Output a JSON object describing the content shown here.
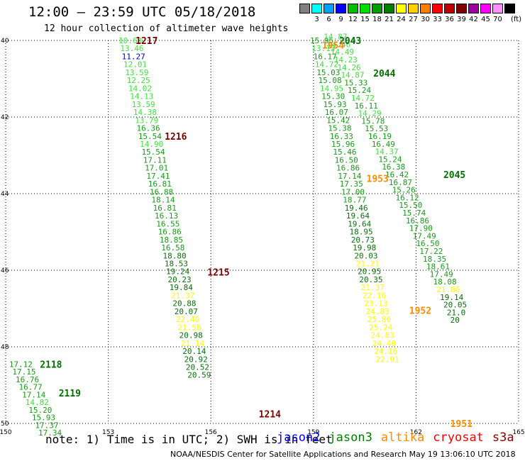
{
  "header": {
    "title": "12:00 – 23:59 UTC 05/18/2018",
    "subtitle": "12 hour collection of altimeter wave heights"
  },
  "scale": {
    "unit": "(ft)",
    "bins": [
      {
        "label": "",
        "color": "#808080"
      },
      {
        "label": "3",
        "color": "#00ffff"
      },
      {
        "label": "6",
        "color": "#00a0ff"
      },
      {
        "label": "9",
        "color": "#0000ff"
      },
      {
        "label": "12",
        "color": "#00c000"
      },
      {
        "label": "15",
        "color": "#00e000"
      },
      {
        "label": "18",
        "color": "#00a000"
      },
      {
        "label": "21",
        "color": "#008000"
      },
      {
        "label": "24",
        "color": "#ffff00"
      },
      {
        "label": "27",
        "color": "#ffd000"
      },
      {
        "label": "30",
        "color": "#ff8000"
      },
      {
        "label": "33",
        "color": "#ff0000"
      },
      {
        "label": "36",
        "color": "#c00000"
      },
      {
        "label": "39",
        "color": "#800000"
      },
      {
        "label": "42",
        "color": "#a000a0"
      },
      {
        "label": "45",
        "color": "#ff00ff"
      },
      {
        "label": "70",
        "color": "#ff90ff"
      },
      {
        "label": "",
        "color": "#000000"
      }
    ]
  },
  "map": {
    "lon_ticks": [
      "150",
      "153",
      "156",
      "159",
      "162",
      "165"
    ],
    "lat_ticks": [
      "40",
      "42",
      "44",
      "46",
      "48",
      "50"
    ],
    "colors": {
      "c3": "#40e040",
      "c4": "#1a9a1a",
      "c5": "#0c6e0c",
      "c6": "#00a0ff",
      "c7": "#ffff00",
      "c8": "#0000cc",
      "label_dark": "#7a0000",
      "label_green": "#007000",
      "label_orange": "#ff8c00"
    },
    "tracks": [
      {
        "lon0": 153.3,
        "lat0": 40.0,
        "dlon": 0.048,
        "dlat": 0.208,
        "values": [
          {
            "v": "10.63",
            "c": "c3"
          },
          {
            "v": "13.46",
            "c": "c3"
          },
          {
            "v": "11.27",
            "c": "c8"
          },
          {
            "v": "12.01",
            "c": "c3"
          },
          {
            "v": "13.59",
            "c": "c3"
          },
          {
            "v": "12.25",
            "c": "c3"
          },
          {
            "v": "14.02",
            "c": "c3"
          },
          {
            "v": "14.13",
            "c": "c3"
          },
          {
            "v": "13.59",
            "c": "c3"
          },
          {
            "v": "14.38",
            "c": "c3"
          },
          {
            "v": "13.79",
            "c": "c3"
          },
          {
            "v": "16.36",
            "c": "c4"
          },
          {
            "v": "15.54",
            "c": "c4"
          },
          {
            "v": "14.90",
            "c": "c3"
          },
          {
            "v": "15.54",
            "c": "c4"
          },
          {
            "v": "17.11",
            "c": "c4"
          },
          {
            "v": "17.01",
            "c": "c4"
          },
          {
            "v": "17.41",
            "c": "c4"
          },
          {
            "v": "16.81",
            "c": "c4"
          },
          {
            "v": "16.88",
            "c": "c4"
          },
          {
            "v": "18.14",
            "c": "c4"
          },
          {
            "v": "16.81",
            "c": "c4"
          },
          {
            "v": "16.13",
            "c": "c4"
          },
          {
            "v": "16.55",
            "c": "c4"
          },
          {
            "v": "16.86",
            "c": "c4"
          },
          {
            "v": "18.85",
            "c": "c4"
          },
          {
            "v": "16.58",
            "c": "c4"
          },
          {
            "v": "18.80",
            "c": "c5"
          },
          {
            "v": "18.53",
            "c": "c5"
          },
          {
            "v": "19.24",
            "c": "c5"
          },
          {
            "v": "20.23",
            "c": "c5"
          },
          {
            "v": "19.84",
            "c": "c5"
          },
          {
            "v": "21.37",
            "c": "c7"
          },
          {
            "v": "20.88",
            "c": "c5"
          },
          {
            "v": "20.07",
            "c": "c5"
          },
          {
            "v": "22.40",
            "c": "c7"
          },
          {
            "v": "21.58",
            "c": "c7"
          },
          {
            "v": "20.98",
            "c": "c5"
          },
          {
            "v": "21.14",
            "c": "c7"
          },
          {
            "v": "20.14",
            "c": "c5"
          },
          {
            "v": "20.92",
            "c": "c5"
          },
          {
            "v": "20.52",
            "c": "c5"
          },
          {
            "v": "20.59",
            "c": "c5"
          }
        ]
      },
      {
        "lon0": 158.9,
        "lat0": 40.0,
        "dlon": 0.048,
        "dlat": 0.208,
        "values": [
          {
            "v": "15.95",
            "c": "c4"
          },
          {
            "v": "13.13",
            "c": "c3"
          },
          {
            "v": "16.17",
            "c": "c4"
          },
          {
            "v": "14.72",
            "c": "c3"
          },
          {
            "v": "15.03",
            "c": "c4"
          },
          {
            "v": "15.08",
            "c": "c4"
          },
          {
            "v": "14.95",
            "c": "c3"
          },
          {
            "v": "15.30",
            "c": "c4"
          },
          {
            "v": "15.93",
            "c": "c4"
          },
          {
            "v": "16.07",
            "c": "c4"
          },
          {
            "v": "15.42",
            "c": "c4"
          },
          {
            "v": "15.38",
            "c": "c4"
          },
          {
            "v": "16.33",
            "c": "c4"
          },
          {
            "v": "15.96",
            "c": "c4"
          },
          {
            "v": "15.46",
            "c": "c4"
          },
          {
            "v": "16.50",
            "c": "c4"
          },
          {
            "v": "16.86",
            "c": "c4"
          },
          {
            "v": "17.14",
            "c": "c4"
          },
          {
            "v": "17.35",
            "c": "c4"
          },
          {
            "v": "17.00",
            "c": "c4"
          },
          {
            "v": "18.77",
            "c": "c4"
          },
          {
            "v": "19.46",
            "c": "c5"
          },
          {
            "v": "19.64",
            "c": "c5"
          },
          {
            "v": "19.64",
            "c": "c5"
          },
          {
            "v": "18.95",
            "c": "c5"
          },
          {
            "v": "20.73",
            "c": "c5"
          },
          {
            "v": "19.98",
            "c": "c5"
          },
          {
            "v": "20.03",
            "c": "c5"
          },
          {
            "v": "21.21",
            "c": "c7"
          },
          {
            "v": "20.95",
            "c": "c5"
          },
          {
            "v": "20.35",
            "c": "c5"
          },
          {
            "v": "21.37",
            "c": "c7"
          },
          {
            "v": "22.16",
            "c": "c7"
          },
          {
            "v": "23.13",
            "c": "c7"
          },
          {
            "v": "24.83",
            "c": "c7"
          },
          {
            "v": "25.86",
            "c": "c7"
          },
          {
            "v": "25.24",
            "c": "c7"
          },
          {
            "v": "24.83",
            "c": "c7"
          },
          {
            "v": "24.40",
            "c": "c7"
          },
          {
            "v": "24.16",
            "c": "c7"
          },
          {
            "v": "22.91",
            "c": "c7"
          }
        ]
      },
      {
        "lon0": 159.3,
        "lat0": 39.9,
        "dlon": 0.1,
        "dlat": 0.2,
        "values": [
          {
            "v": "14.87",
            "c": "c3"
          },
          {
            "v": "14.46",
            "c": "c3"
          },
          {
            "v": "14.49",
            "c": "c3"
          },
          {
            "v": "14.23",
            "c": "c3"
          },
          {
            "v": "14.26",
            "c": "c3"
          },
          {
            "v": "14.87",
            "c": "c3"
          },
          {
            "v": "15.33",
            "c": "c4"
          },
          {
            "v": "15.24",
            "c": "c4"
          },
          {
            "v": "14.72",
            "c": "c3"
          },
          {
            "v": "16.11",
            "c": "c4"
          },
          {
            "v": "14.29",
            "c": "c3"
          },
          {
            "v": "15.78",
            "c": "c4"
          },
          {
            "v": "15.53",
            "c": "c4"
          },
          {
            "v": "16.19",
            "c": "c4"
          },
          {
            "v": "16.49",
            "c": "c4"
          },
          {
            "v": "14.37",
            "c": "c3"
          },
          {
            "v": "15.24",
            "c": "c4"
          },
          {
            "v": "16.38",
            "c": "c4"
          },
          {
            "v": "16.42",
            "c": "c4"
          },
          {
            "v": "16.87",
            "c": "c4"
          },
          {
            "v": "15.26",
            "c": "c4"
          },
          {
            "v": "16.12",
            "c": "c4"
          },
          {
            "v": "15.50",
            "c": "c4"
          },
          {
            "v": "15.74",
            "c": "c4"
          },
          {
            "v": "16.86",
            "c": "c4"
          },
          {
            "v": "17.90",
            "c": "c4"
          },
          {
            "v": "17.49",
            "c": "c4"
          },
          {
            "v": "16.50",
            "c": "c4"
          },
          {
            "v": "17.22",
            "c": "c4"
          },
          {
            "v": "18.35",
            "c": "c4"
          },
          {
            "v": "18.61",
            "c": "c4"
          },
          {
            "v": "17.49",
            "c": "c4"
          },
          {
            "v": "18.08",
            "c": "c4"
          },
          {
            "v": "21.86",
            "c": "c7"
          },
          {
            "v": "19.14",
            "c": "c5"
          },
          {
            "v": "20.05",
            "c": "c5"
          },
          {
            "v": "21.0",
            "c": "c5"
          },
          {
            "v": "20",
            "c": "c5"
          }
        ]
      },
      {
        "lon0": 150.1,
        "lat0": 48.45,
        "dlon": 0.095,
        "dlat": 0.199,
        "values": [
          {
            "v": "17.12",
            "c": "c4"
          },
          {
            "v": "17.15",
            "c": "c4"
          },
          {
            "v": "16.76",
            "c": "c4"
          },
          {
            "v": "16.77",
            "c": "c4"
          },
          {
            "v": "17.14",
            "c": "c4"
          },
          {
            "v": "14.82",
            "c": "c3"
          },
          {
            "v": "15.20",
            "c": "c4"
          },
          {
            "v": "15.93",
            "c": "c4"
          },
          {
            "v": "17.37",
            "c": "c4"
          },
          {
            "v": "17.34",
            "c": "c4"
          }
        ]
      }
    ],
    "labels": [
      {
        "text": "1217",
        "lon": 153.8,
        "lat": 40.0,
        "c": "label_dark"
      },
      {
        "text": "1216",
        "lon": 154.65,
        "lat": 42.5,
        "c": "label_dark"
      },
      {
        "text": "1215",
        "lon": 155.9,
        "lat": 46.05,
        "c": "label_dark"
      },
      {
        "text": "1214",
        "lon": 157.4,
        "lat": 49.75,
        "c": "label_dark"
      },
      {
        "text": "2043",
        "lon": 159.75,
        "lat": 40.0,
        "c": "label_green"
      },
      {
        "text": "1954",
        "lon": 159.25,
        "lat": 40.12,
        "c": "label_orange"
      },
      {
        "text": "2044",
        "lon": 160.75,
        "lat": 40.85,
        "c": "label_green"
      },
      {
        "text": "1953",
        "lon": 160.55,
        "lat": 43.6,
        "c": "label_orange"
      },
      {
        "text": "2045",
        "lon": 162.8,
        "lat": 43.5,
        "c": "label_green"
      },
      {
        "text": "1952",
        "lon": 161.8,
        "lat": 47.05,
        "c": "label_orange"
      },
      {
        "text": "1951",
        "lon": 163.0,
        "lat": 50.0,
        "c": "label_orange"
      },
      {
        "text": "2118",
        "lon": 151.0,
        "lat": 48.45,
        "c": "label_green"
      },
      {
        "text": "2119",
        "lon": 151.55,
        "lat": 49.2,
        "c": "label_green"
      }
    ]
  },
  "note": "note: 1) Time is in UTC; 2) SWH is in feet",
  "legend": [
    {
      "name": "jason2",
      "color": "#0000ff"
    },
    {
      "name": "jason3",
      "color": "#008000"
    },
    {
      "name": "altika",
      "color": "#ff8c00"
    },
    {
      "name": "cryosat",
      "color": "#ff0000"
    },
    {
      "name": "s3a",
      "color": "#8b0000"
    }
  ],
  "credit": "NOAA/NESDIS Center for Satellite Applications and Research   May 19 13:06:10 UTC 2018"
}
